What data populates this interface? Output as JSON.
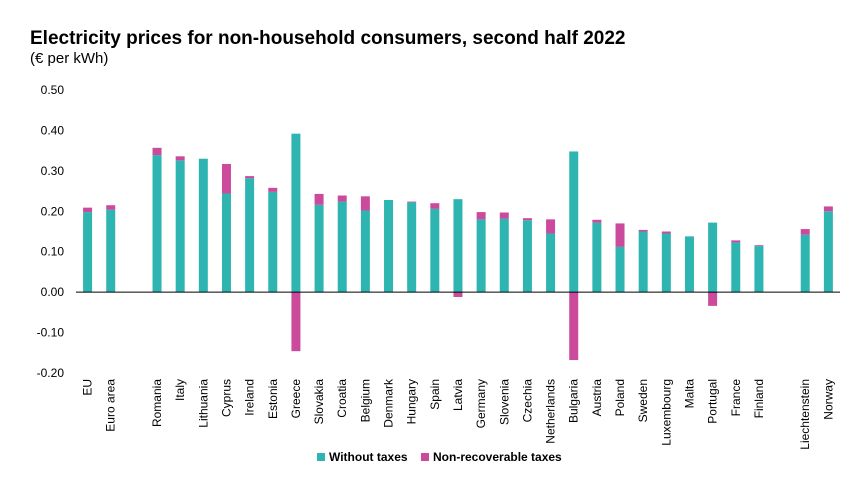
{
  "chart_data": {
    "type": "bar",
    "stacked": true,
    "title": "Electricity prices for non-household consumers, second half 2022",
    "subtitle": "(€ per kWh)",
    "ylim": [
      -0.2,
      0.5
    ],
    "yticks": [
      "0.50",
      "0.40",
      "0.30",
      "0.20",
      "0.10",
      "0.00",
      "-0.10",
      "-0.20"
    ],
    "grid": false,
    "legend_position": "bottom-center",
    "categories": [
      "EU",
      "Euro area",
      "",
      "Romania",
      "Italy",
      "Lithuania",
      "Cyprus",
      "Ireland",
      "Estonia",
      "Greece",
      "Slovakia",
      "Croatia",
      "Belgium",
      "Denmark",
      "Hungary",
      "Spain",
      "Latvia",
      "Germany",
      "Slovenia",
      "Czechia",
      "Netherlands",
      "Bulgaria",
      "Austria",
      "Poland",
      "Sweden",
      "Luxembourg",
      "Malta",
      "Portugal",
      "France",
      "Finland",
      "",
      "Liechtenstein",
      "Norway"
    ],
    "series": [
      {
        "name": "Without taxes",
        "color": "#2fb5b1",
        "values": [
          0.198,
          0.204,
          null,
          0.339,
          0.326,
          0.33,
          0.244,
          0.282,
          0.248,
          0.392,
          0.216,
          0.224,
          0.202,
          0.228,
          0.222,
          0.206,
          0.23,
          0.18,
          0.182,
          0.178,
          0.145,
          0.348,
          0.172,
          0.112,
          0.15,
          0.145,
          0.138,
          0.172,
          0.123,
          0.114,
          null,
          0.142,
          0.2
        ]
      },
      {
        "name": "Non-recoverable taxes",
        "color": "#cc4a9c",
        "values": [
          0.011,
          0.011,
          null,
          0.018,
          0.01,
          0.0,
          0.073,
          0.005,
          0.01,
          -0.146,
          0.027,
          0.015,
          0.035,
          0.0,
          0.002,
          0.014,
          -0.012,
          0.018,
          0.015,
          0.005,
          0.035,
          -0.168,
          0.007,
          0.058,
          0.004,
          0.005,
          0.0,
          -0.034,
          0.005,
          0.002,
          null,
          0.014,
          0.012
        ]
      }
    ]
  }
}
